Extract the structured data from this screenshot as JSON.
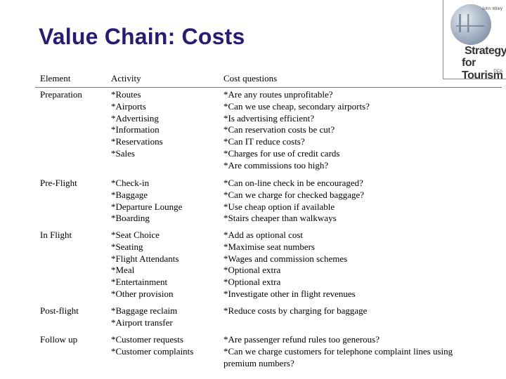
{
  "title": "Value Chain: Costs",
  "logo": {
    "small_top": "John Wiley",
    "line1": "Strategy",
    "line2": "for Tourism",
    "small_bottom": "©CA"
  },
  "table": {
    "headers": [
      "Element",
      "Activity",
      "Cost questions"
    ],
    "rows": [
      {
        "element": "Preparation",
        "activities": [
          "*Routes",
          "*Airports",
          "*Advertising",
          "*Information",
          "*Reservations",
          "*Sales"
        ],
        "questions": [
          "*Are any routes unprofitable?",
          "*Can we use cheap, secondary airports?",
          "*Is advertising efficient?",
          "*Can reservation costs be cut?",
          "*Can IT reduce costs?",
          "*Charges for use of credit cards",
          "*Are commissions too high?"
        ]
      },
      {
        "element": "Pre-Flight",
        "activities": [
          "*Check-in",
          "*Baggage",
          "*Departure Lounge",
          "*Boarding"
        ],
        "questions": [
          "*Can on-line check in be encouraged?",
          "*Can we charge for checked baggage?",
          "*Use cheap option if available",
          "*Stairs cheaper than walkways"
        ]
      },
      {
        "element": "In Flight",
        "activities": [
          "*Seat Choice",
          "*Seating",
          "*Flight Attendants",
          "*Meal",
          "*Entertainment",
          "*Other provision"
        ],
        "questions": [
          "*Add as optional cost",
          "*Maximise seat numbers",
          "*Wages and commission schemes",
          "*Optional extra",
          "*Optional extra",
          "*Investigate other in flight revenues"
        ]
      },
      {
        "element": "Post-flight",
        "activities": [
          "*Baggage reclaim",
          "*Airport transfer"
        ],
        "questions": [
          "*Reduce costs by charging for baggage"
        ]
      },
      {
        "element": "Follow up",
        "activities": [
          "*Customer requests",
          "*Customer complaints"
        ],
        "questions": [
          "*Are passenger refund rules too generous?",
          "*Can we charge customers for telephone complaint lines using",
          "premium numbers?"
        ]
      }
    ]
  }
}
